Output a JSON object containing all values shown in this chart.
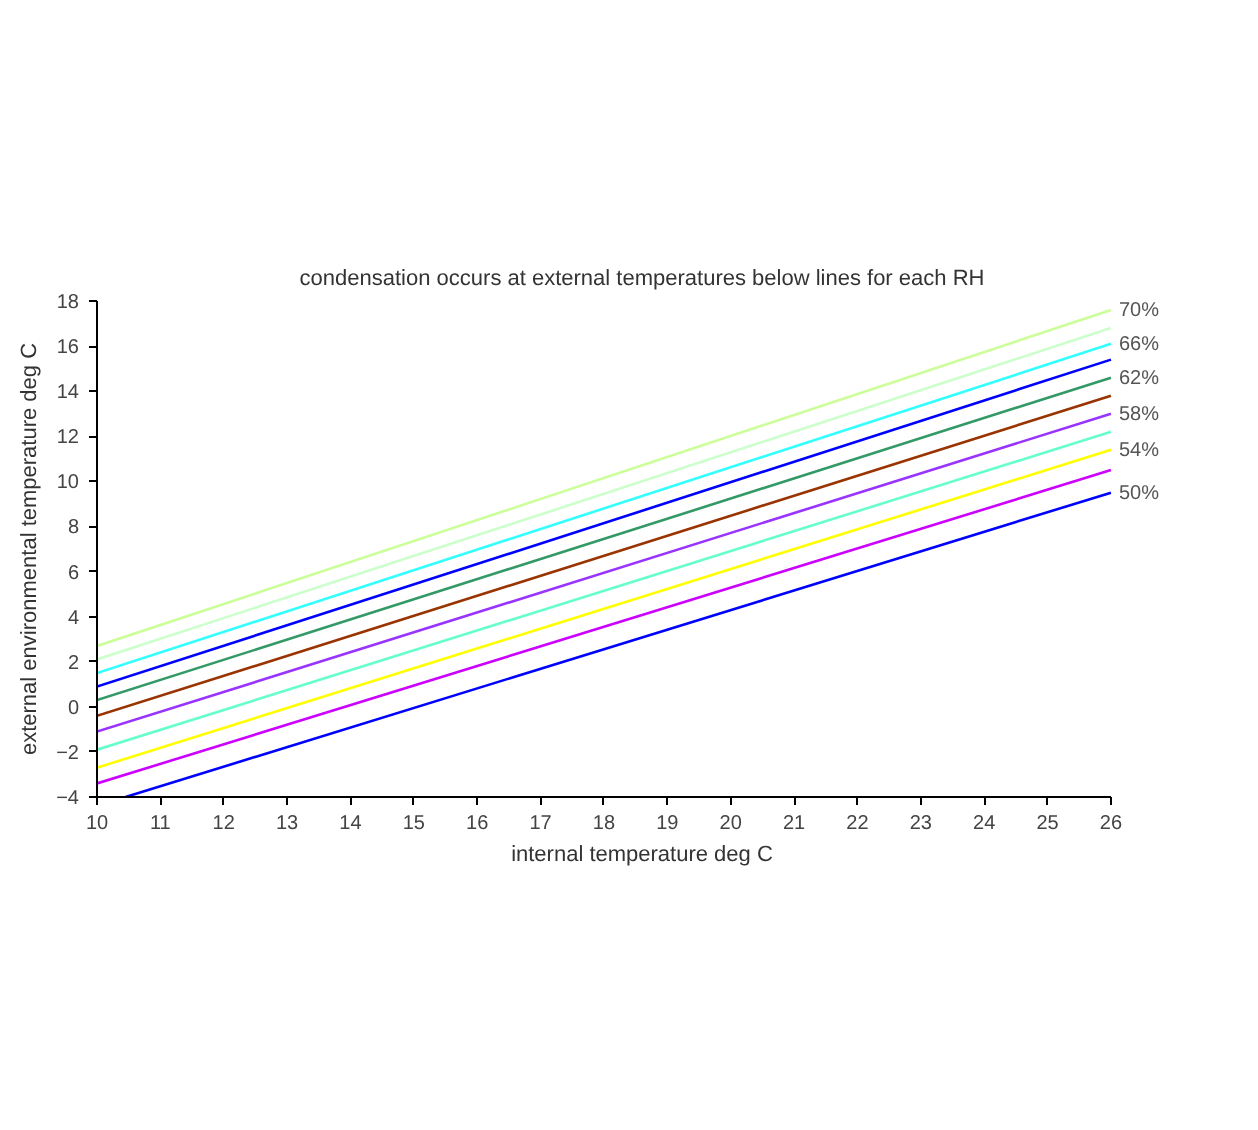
{
  "chart_data": {
    "type": "line",
    "title": "condensation occurs at external temperatures below lines for each RH",
    "xlabel": "internal temperature deg C",
    "ylabel": "external environmental temperature deg C",
    "xlim": [
      10,
      26
    ],
    "ylim": [
      -4,
      18
    ],
    "xticks": [
      10,
      11,
      12,
      13,
      14,
      15,
      16,
      17,
      18,
      19,
      20,
      21,
      22,
      23,
      24,
      25,
      26
    ],
    "yticks": [
      -4,
      -2,
      0,
      2,
      4,
      6,
      8,
      10,
      12,
      14,
      16,
      18
    ],
    "grid": false,
    "marker": "none",
    "line_style": "solid",
    "series": [
      {
        "name": "50%",
        "color": "#0000ff",
        "x": [
          10.45,
          26
        ],
        "values": [
          -4,
          9.5
        ]
      },
      {
        "color": "#cc00ff",
        "x": [
          10,
          26
        ],
        "values": [
          -3.4,
          10.5
        ]
      },
      {
        "name": "54%",
        "color": "#ffff00",
        "x": [
          10,
          26
        ],
        "values": [
          -2.7,
          11.4
        ]
      },
      {
        "color": "#66ffcc",
        "x": [
          10,
          26
        ],
        "values": [
          -1.9,
          12.2
        ]
      },
      {
        "name": "58%",
        "color": "#9933ff",
        "x": [
          10,
          26
        ],
        "values": [
          -1.1,
          13.0
        ]
      },
      {
        "color": "#993300",
        "x": [
          10,
          26
        ],
        "values": [
          -0.4,
          13.8
        ]
      },
      {
        "name": "62%",
        "color": "#339966",
        "x": [
          10,
          26
        ],
        "values": [
          0.3,
          14.6
        ]
      },
      {
        "color": "#0000ff",
        "x": [
          10,
          26
        ],
        "values": [
          0.9,
          15.4
        ]
      },
      {
        "name": "66%",
        "color": "#33ffff",
        "x": [
          10,
          26
        ],
        "values": [
          1.5,
          16.1
        ]
      },
      {
        "color": "#ccffcc",
        "x": [
          10,
          26
        ],
        "values": [
          2.1,
          16.8
        ]
      },
      {
        "name": "70%",
        "color": "#ccff99",
        "x": [
          10,
          26
        ],
        "values": [
          2.7,
          17.6
        ]
      }
    ]
  }
}
